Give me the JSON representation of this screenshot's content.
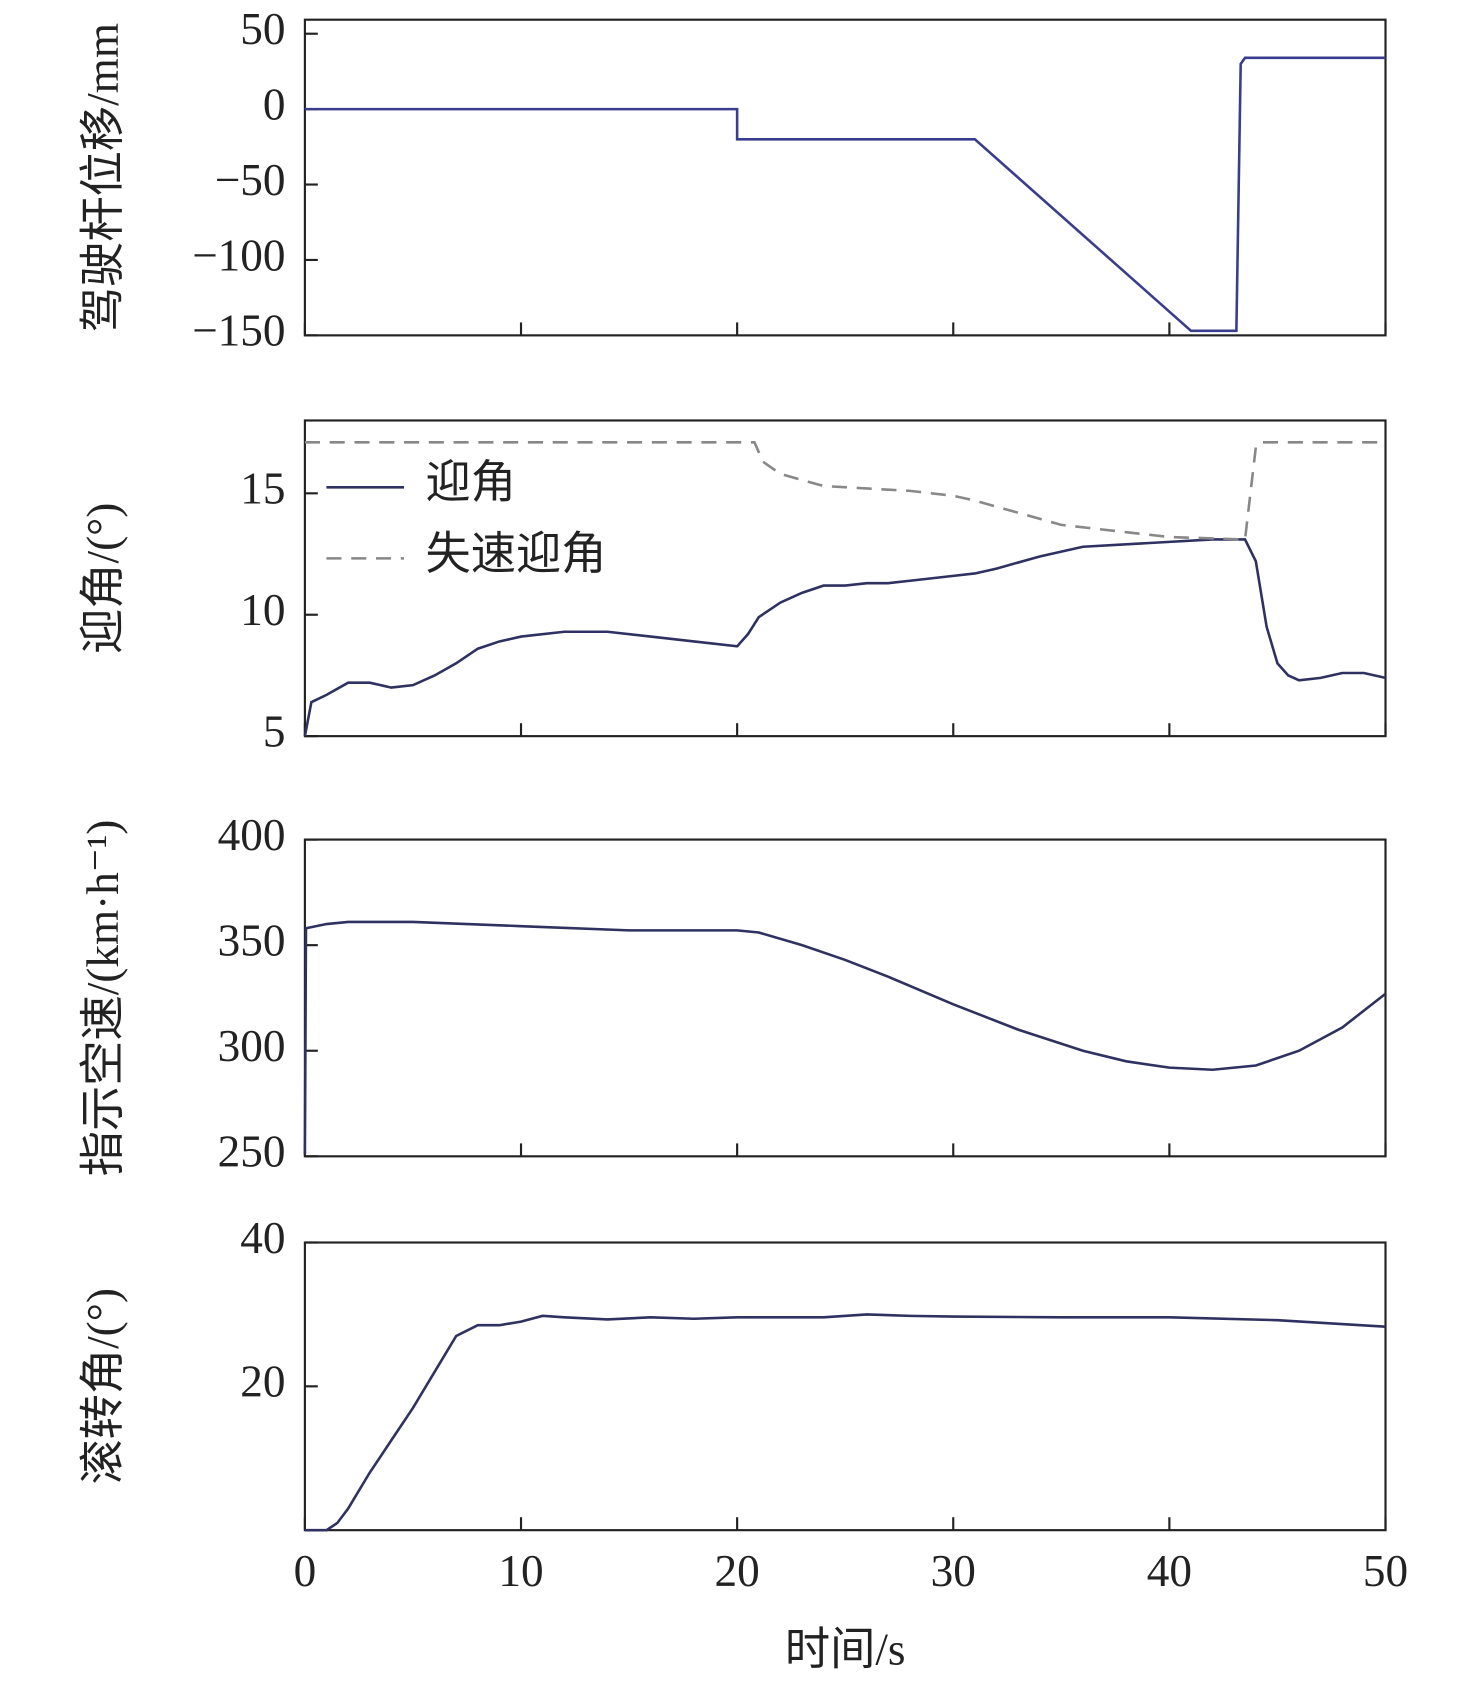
{
  "chart_data": [
    {
      "type": "line",
      "y_label": "驾驶杆位移/mm",
      "xlim": [
        0,
        50
      ],
      "xticks": [
        0,
        10,
        20,
        30,
        40,
        50
      ],
      "show_xtick_labels": false,
      "ylim": [
        -150,
        59.3
      ],
      "yticks": [
        {
          "value": -150,
          "label": "−150"
        },
        {
          "value": -100,
          "label": "−100"
        },
        {
          "value": -50,
          "label": "−50"
        },
        0,
        50
      ],
      "series": [
        {
          "color": "#3a3d8c",
          "line_style": "solid",
          "x": [
            0,
            20,
            20,
            31,
            41,
            43.1,
            43.3,
            43.5,
            50
          ],
          "values": [
            0,
            0,
            -20,
            -20,
            -147,
            -147,
            30,
            34,
            34
          ]
        }
      ]
    },
    {
      "type": "line",
      "y_label": "迎角/(°)",
      "xlim": [
        0,
        50
      ],
      "xticks": [
        0,
        10,
        20,
        30,
        40,
        50
      ],
      "show_xtick_labels": false,
      "ylim": [
        5,
        18
      ],
      "yticks": [
        5,
        10,
        15
      ],
      "legend": "upper left",
      "series": [
        {
          "name": "迎角",
          "color": "#2f3160",
          "line_style": "solid",
          "x": [
            0,
            0.3,
            1,
            2,
            3,
            4,
            5,
            6,
            7,
            8,
            9,
            10,
            12,
            14,
            16,
            18,
            20,
            20.5,
            21,
            22,
            23,
            24,
            25,
            26,
            27,
            28,
            30,
            31,
            32,
            34,
            36,
            38,
            40,
            42,
            43.5,
            44,
            44.5,
            45,
            45.5,
            46,
            47,
            48,
            49,
            50
          ],
          "values": [
            5,
            6.4,
            6.7,
            7.2,
            7.2,
            7.0,
            7.1,
            7.5,
            8.0,
            8.6,
            8.9,
            9.1,
            9.3,
            9.3,
            9.1,
            8.9,
            8.7,
            9.2,
            9.9,
            10.5,
            10.9,
            11.2,
            11.2,
            11.3,
            11.3,
            11.4,
            11.6,
            11.7,
            11.9,
            12.4,
            12.8,
            12.9,
            13.0,
            13.1,
            13.1,
            12.2,
            9.5,
            8.0,
            7.5,
            7.3,
            7.4,
            7.6,
            7.6,
            7.4
          ]
        },
        {
          "name": "失速迎角",
          "color": "#888888",
          "line_style": "dashed",
          "x": [
            0,
            20.8,
            21.2,
            22,
            24,
            26,
            28,
            30,
            31,
            33,
            35,
            38,
            40,
            43.5,
            44,
            44.2,
            50
          ],
          "values": [
            17.1,
            17.1,
            16.3,
            15.8,
            15.3,
            15.2,
            15.1,
            14.9,
            14.7,
            14.2,
            13.7,
            13.4,
            13.2,
            13.1,
            16.9,
            17.1,
            17.1
          ]
        }
      ]
    },
    {
      "type": "line",
      "y_label": "指示空速/(km·h⁻¹)",
      "xlim": [
        0,
        50
      ],
      "xticks": [
        0,
        10,
        20,
        30,
        40,
        50
      ],
      "show_xtick_labels": false,
      "ylim": [
        250,
        400
      ],
      "yticks": [
        250,
        300,
        350,
        400
      ],
      "series": [
        {
          "color": "#2f3160",
          "line_style": "solid",
          "x": [
            0,
            0.05,
            1,
            2,
            5,
            10,
            15,
            20,
            21,
            23,
            25,
            27,
            30,
            33,
            36,
            38,
            40,
            42,
            44,
            46,
            48,
            50
          ],
          "values": [
            251,
            358,
            360,
            361,
            361,
            359,
            357,
            357,
            356,
            350,
            343,
            335,
            322,
            310,
            300,
            295,
            292,
            291,
            293,
            300,
            311,
            327
          ]
        }
      ]
    },
    {
      "type": "line",
      "y_label": "滚转角/(°)",
      "x_label": "时间/s",
      "xlim": [
        0,
        50
      ],
      "xticks": [
        0,
        10,
        20,
        30,
        40,
        50
      ],
      "show_xtick_labels": true,
      "ylim": [
        0,
        40
      ],
      "yticks": [
        20,
        40
      ],
      "series": [
        {
          "color": "#2f3160",
          "line_style": "solid",
          "x": [
            0,
            1,
            1.5,
            2,
            3,
            4,
            5,
            6,
            7,
            8,
            9,
            10,
            11,
            12,
            14,
            16,
            18,
            20,
            22,
            24,
            26,
            28,
            30,
            35,
            40,
            45,
            50
          ],
          "values": [
            0,
            0,
            1,
            3,
            8,
            12.5,
            17,
            22,
            27,
            28.5,
            28.5,
            29,
            29.8,
            29.6,
            29.3,
            29.6,
            29.4,
            29.6,
            29.6,
            29.6,
            30,
            29.8,
            29.7,
            29.6,
            29.6,
            29.2,
            28.3
          ]
        }
      ]
    }
  ]
}
